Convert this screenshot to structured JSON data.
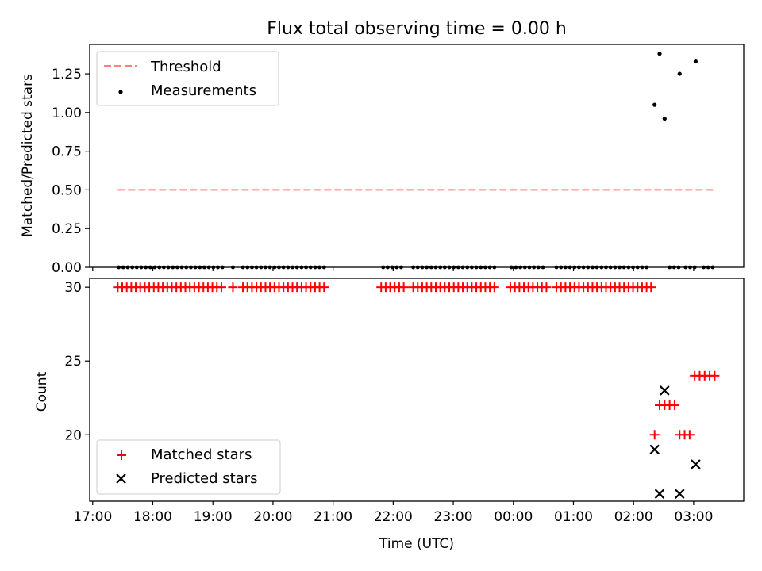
{
  "chart_data": [
    {
      "type": "scatter",
      "title": "Flux total observing time = 0.00 h",
      "xlabel": "",
      "ylabel": "Matched/Predicted stars",
      "ylim": [
        0,
        1.44
      ],
      "yticks": [
        "0.00",
        "0.25",
        "0.50",
        "0.75",
        "1.00",
        "1.25"
      ],
      "ytick_values": [
        0,
        0.25,
        0.5,
        0.75,
        1.0,
        1.25
      ],
      "legend_position": "top-left",
      "grid": false,
      "threshold": {
        "name": "Threshold",
        "value": 0.5,
        "x_start": "17:25",
        "x_end": "03:20",
        "color": "#ff7f7f"
      },
      "measurements": {
        "name": "Measurements",
        "color": "#000000",
        "points": [
          {
            "x": "02:21",
            "y": 1.05
          },
          {
            "x": "02:26",
            "y": 1.38
          },
          {
            "x": "02:31",
            "y": 0.96
          },
          {
            "x": "02:46",
            "y": 1.25
          },
          {
            "x": "03:02",
            "y": 1.33
          }
        ],
        "zero_segments": [
          [
            "17:26",
            "19:10"
          ],
          [
            "19:20",
            "19:20"
          ],
          [
            "19:30",
            "20:55"
          ],
          [
            "21:50",
            "22:10"
          ],
          [
            "22:20",
            "23:45"
          ],
          [
            "23:58",
            "00:33"
          ],
          [
            "00:43",
            "02:15"
          ],
          [
            "02:36",
            "02:45"
          ],
          [
            "02:52",
            "03:02"
          ],
          [
            "03:10",
            "03:20"
          ]
        ]
      }
    },
    {
      "type": "scatter",
      "title": "",
      "xlabel": "Time (UTC)",
      "ylabel": "Count",
      "ylim": [
        15.5,
        30.6
      ],
      "yticks": [
        "20",
        "25",
        "30"
      ],
      "ytick_values": [
        20,
        25,
        30
      ],
      "xlim": [
        "16:57",
        "03:50"
      ],
      "xticks": [
        "17:00",
        "18:00",
        "19:00",
        "20:00",
        "21:00",
        "22:00",
        "23:00",
        "00:00",
        "01:00",
        "02:00",
        "03:00"
      ],
      "legend_position": "bottom-left",
      "grid": false,
      "matched": {
        "name": "Matched stars",
        "color": "#ff0000",
        "segments": [
          {
            "start": "17:25",
            "end": "19:10",
            "y": 30
          },
          {
            "start": "19:20",
            "end": "19:20",
            "y": 30
          },
          {
            "start": "19:30",
            "end": "20:55",
            "y": 30
          },
          {
            "start": "21:48",
            "end": "22:12",
            "y": 30
          },
          {
            "start": "22:20",
            "end": "23:45",
            "y": 30
          },
          {
            "start": "23:57",
            "end": "00:33",
            "y": 30
          },
          {
            "start": "00:43",
            "end": "02:20",
            "y": 30
          }
        ],
        "points": [
          {
            "x": "02:21",
            "y": 20
          },
          {
            "x": "02:26",
            "y": 22
          },
          {
            "x": "02:31",
            "y": 22
          },
          {
            "x": "02:36",
            "y": 22
          },
          {
            "x": "02:41",
            "y": 22
          },
          {
            "x": "02:46",
            "y": 20
          },
          {
            "x": "02:51",
            "y": 20
          },
          {
            "x": "02:56",
            "y": 20
          },
          {
            "x": "03:01",
            "y": 24
          },
          {
            "x": "03:06",
            "y": 24
          },
          {
            "x": "03:11",
            "y": 24
          },
          {
            "x": "03:16",
            "y": 24
          },
          {
            "x": "03:21",
            "y": 24
          }
        ]
      },
      "predicted": {
        "name": "Predicted stars",
        "color": "#000000",
        "points": [
          {
            "x": "02:21",
            "y": 19
          },
          {
            "x": "02:26",
            "y": 16
          },
          {
            "x": "02:31",
            "y": 23
          },
          {
            "x": "02:46",
            "y": 16
          },
          {
            "x": "03:02",
            "y": 18
          }
        ]
      }
    }
  ]
}
